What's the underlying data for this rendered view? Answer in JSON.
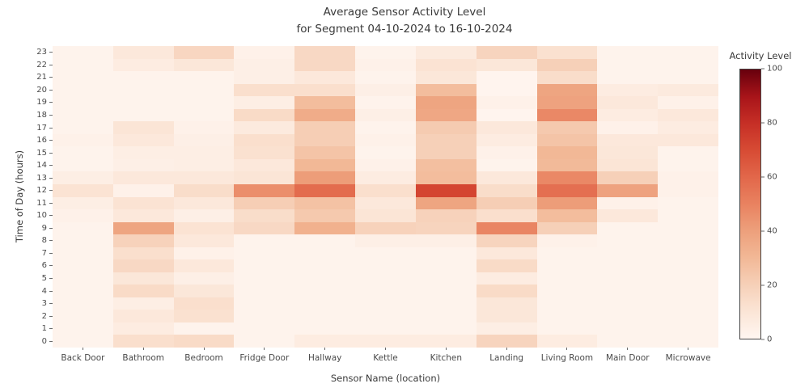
{
  "title": {
    "line1": "Average Sensor Activity Level",
    "line2": "for Segment 04-10-2024 to 16-10-2024"
  },
  "chart_data": {
    "type": "heatmap",
    "title": "Average Sensor Activity Level for Segment 04-10-2024 to 16-10-2024",
    "title_lines": [
      "Average Sensor Activity Level",
      "for Segment 04-10-2024 to 16-10-2024"
    ],
    "xlabel": "Sensor Name (location)",
    "ylabel": "Time of Day (hours)",
    "grid": false,
    "x_categories": [
      "Back Door",
      "Bathroom",
      "Bedroom",
      "Fridge Door",
      "Hallway",
      "Kettle",
      "Kitchen",
      "Landing",
      "Living Room",
      "Main Door",
      "Microwave"
    ],
    "y_categories_top_to_bottom": [
      "23",
      "22",
      "21",
      "20",
      "19",
      "18",
      "17",
      "16",
      "15",
      "14",
      "13",
      "12",
      "11",
      "10",
      "9",
      "8",
      "7",
      "6",
      "5",
      "4",
      "3",
      "2",
      "1",
      "0"
    ],
    "values_by_row": [
      [
        2,
        8,
        17,
        3,
        16,
        2,
        7,
        18,
        12,
        2,
        2
      ],
      [
        2,
        6,
        9,
        4,
        16,
        3,
        11,
        9,
        20,
        2,
        2
      ],
      [
        2,
        2,
        2,
        4,
        8,
        2,
        9,
        1,
        14,
        2,
        2
      ],
      [
        2,
        2,
        2,
        13,
        13,
        4,
        28,
        1,
        38,
        6,
        7
      ],
      [
        2,
        2,
        2,
        5,
        28,
        2,
        38,
        3,
        39,
        8,
        3
      ],
      [
        2,
        2,
        2,
        15,
        35,
        4,
        37,
        1,
        48,
        6,
        8
      ],
      [
        2,
        10,
        3,
        7,
        21,
        2,
        22,
        8,
        23,
        3,
        6
      ],
      [
        3,
        8,
        4,
        13,
        21,
        3,
        20,
        6,
        25,
        8,
        8
      ],
      [
        2,
        5,
        5,
        12,
        25,
        2,
        20,
        3,
        30,
        9,
        2
      ],
      [
        2,
        4,
        5,
        8,
        30,
        3,
        27,
        2,
        29,
        10,
        2
      ],
      [
        5,
        8,
        8,
        10,
        41,
        6,
        28,
        8,
        48,
        20,
        3
      ],
      [
        11,
        3,
        14,
        46,
        58,
        13,
        72,
        14,
        57,
        39,
        3
      ],
      [
        5,
        11,
        8,
        21,
        26,
        8,
        38,
        21,
        41,
        3,
        2
      ],
      [
        3,
        8,
        4,
        14,
        23,
        10,
        19,
        13,
        28,
        8,
        2
      ],
      [
        2,
        38,
        11,
        16,
        33,
        19,
        18,
        49,
        20,
        2,
        2
      ],
      [
        2,
        19,
        8,
        2,
        2,
        4,
        4,
        18,
        3,
        2,
        2
      ],
      [
        2,
        13,
        3,
        2,
        2,
        2,
        2,
        8,
        2,
        2,
        2
      ],
      [
        2,
        16,
        8,
        2,
        2,
        2,
        2,
        15,
        2,
        2,
        2
      ],
      [
        2,
        9,
        4,
        2,
        2,
        2,
        2,
        6,
        2,
        2,
        2
      ],
      [
        2,
        15,
        9,
        2,
        2,
        2,
        2,
        15,
        2,
        2,
        2
      ],
      [
        2,
        5,
        13,
        2,
        2,
        2,
        2,
        9,
        2,
        2,
        2
      ],
      [
        2,
        8,
        12,
        2,
        2,
        2,
        2,
        9,
        2,
        2,
        2
      ],
      [
        2,
        6,
        2,
        2,
        2,
        2,
        2,
        5,
        2,
        2,
        2
      ],
      [
        2,
        13,
        15,
        2,
        6,
        6,
        6,
        18,
        6,
        2,
        2
      ]
    ],
    "colorbar": {
      "label": "Activity Level",
      "min": 0,
      "max": 100,
      "ticks": [
        0,
        20,
        40,
        60,
        80,
        100
      ],
      "position": "right"
    },
    "colormap": {
      "name": "Reds",
      "anchors": [
        {
          "v": 0,
          "c": "#fff6f1"
        },
        {
          "v": 10,
          "c": "#fbe5d6"
        },
        {
          "v": 20,
          "c": "#f6d0b8"
        },
        {
          "v": 30,
          "c": "#f2b896"
        },
        {
          "v": 40,
          "c": "#eda07c"
        },
        {
          "v": 50,
          "c": "#e98260"
        },
        {
          "v": 60,
          "c": "#e2674a"
        },
        {
          "v": 70,
          "c": "#d74b34"
        },
        {
          "v": 80,
          "c": "#c62f26"
        },
        {
          "v": 90,
          "c": "#a81419"
        },
        {
          "v": 100,
          "c": "#67000d"
        }
      ]
    }
  }
}
